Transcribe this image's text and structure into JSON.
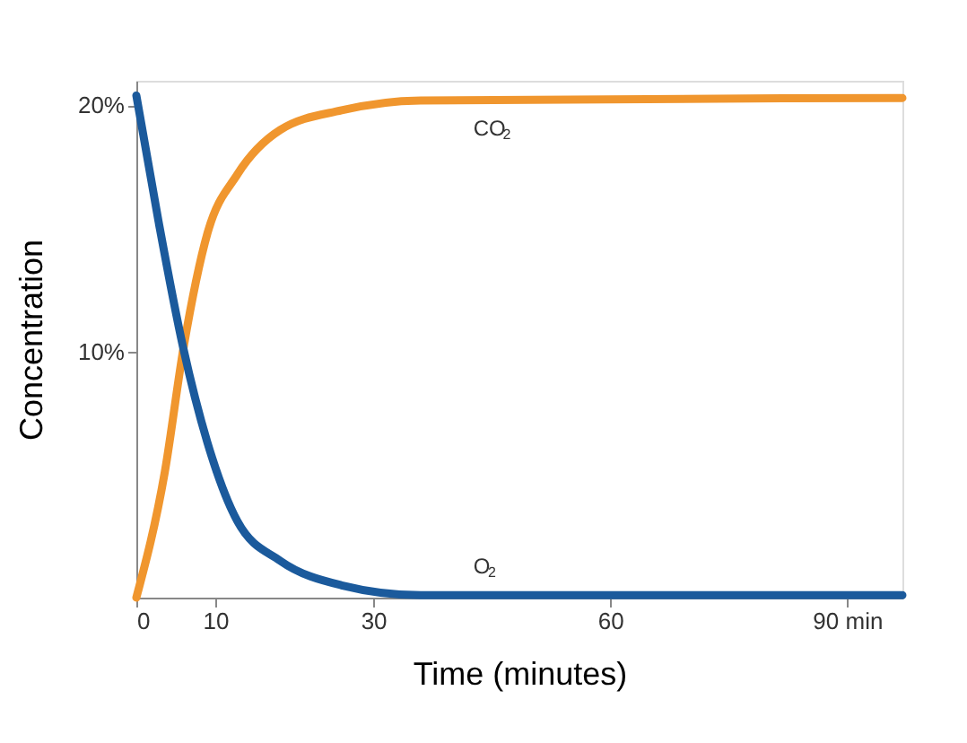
{
  "chart_data": {
    "type": "line",
    "xlabel": "Time (minutes)",
    "ylabel": "Concentration",
    "xlim": [
      0,
      97
    ],
    "xticks": [
      0,
      10,
      30,
      60,
      {
        "value": 90,
        "label": "90 min"
      }
    ],
    "ylim": [
      0,
      21
    ],
    "yticks": [
      {
        "value": 10,
        "label": "10%"
      },
      {
        "value": 20,
        "label": "20%"
      }
    ],
    "grid": false,
    "legend": false,
    "marker": "none",
    "line_style": "solid",
    "series": [
      {
        "name": "CO$_{2}$",
        "color": "#f0962e",
        "x": [
          0,
          3.6,
          6,
          9,
          12.8,
          18.2,
          26,
          36,
          97
        ],
        "values": [
          0,
          5.1,
          10.2,
          14.8,
          17.2,
          19.0,
          19.8,
          20.2,
          20.3
        ]
      },
      {
        "name": "O$_{2}$",
        "color": "#1b5a9c",
        "x": [
          0,
          2.8,
          5.9,
          9,
          12.8,
          18.2,
          26,
          36,
          97
        ],
        "values": [
          20.4,
          15.3,
          10.2,
          6.3,
          3.1,
          1.5,
          0.5,
          0.1,
          0.1
        ]
      }
    ]
  }
}
